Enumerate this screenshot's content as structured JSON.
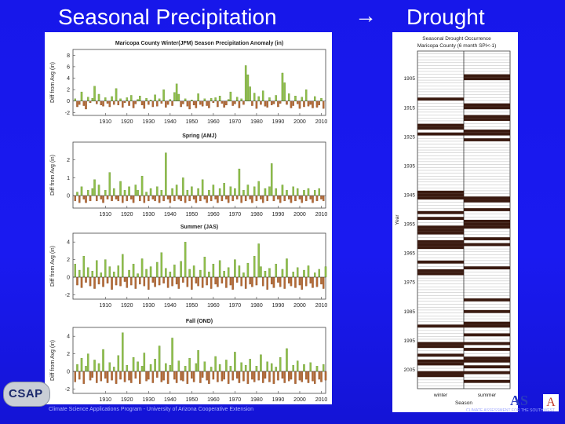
{
  "slide": {
    "title_left": "Seasonal Precipitation",
    "arrow": "→",
    "title_right": "Drought",
    "footer": "Climate Science Applications Program - University of Arizona Cooperative Extension",
    "logo_left": "CSAP",
    "logo_right": "AS",
    "logo_right_box": "A",
    "logo_right_sub": "CLIMATE ASSESSMENT FOR THE SOUTHWEST",
    "colors": {
      "background": "#1a1af0",
      "positive": "#8fbf4a",
      "negative": "#b56a35",
      "drought": "#3a1a10"
    }
  },
  "chart_data": [
    {
      "type": "bar",
      "title": "Maricopa County Winter(JFM) Season Precipitation Anomaly (in)",
      "ylabel": "Diff from Avg (in)",
      "ylim": [
        -2.5,
        9
      ],
      "yticks": [
        "8",
        "6",
        "4",
        "2",
        "0",
        "-2"
      ],
      "xlim": [
        1895,
        2012
      ],
      "xticks": [
        "1910",
        "1920",
        "1930",
        "1940",
        "1950",
        "1960",
        "1970",
        "1980",
        "1990",
        "2000",
        "2010"
      ],
      "start_year": 1896,
      "values": [
        0.4,
        -1.0,
        -0.6,
        1.6,
        -0.8,
        -1.4,
        0.7,
        -0.3,
        0.5,
        2.6,
        -0.5,
        1.2,
        -0.7,
        -0.9,
        0.6,
        -0.4,
        -1.0,
        0.8,
        -0.6,
        2.2,
        -0.7,
        0.4,
        -1.1,
        -0.3,
        0.6,
        -0.8,
        1.0,
        -1.2,
        -0.5,
        0.3,
        0.9,
        -0.7,
        -1.3,
        0.5,
        -0.6,
        0.2,
        -1.0,
        1.1,
        -0.9,
        0.4,
        -0.4,
        2.0,
        -1.1,
        -0.6,
        0.3,
        -0.8,
        1.5,
        3.0,
        1.2,
        -1.0,
        -0.5,
        0.4,
        -0.9,
        -1.4,
        0.2,
        -0.7,
        -1.2,
        1.3,
        -0.6,
        -0.9,
        0.4,
        -0.8,
        -1.2,
        0.5,
        -0.3,
        0.6,
        -1.0,
        0.9,
        -0.4,
        -1.1,
        -0.7,
        0.3,
        1.6,
        -0.8,
        -0.5,
        0.7,
        -1.2,
        0.4,
        -0.6,
        6.2,
        4.6,
        2.5,
        -0.8,
        1.4,
        -1.3,
        0.8,
        -0.6,
        1.8,
        -0.9,
        -1.1,
        0.6,
        -0.7,
        -0.5,
        1.0,
        -1.0,
        -0.4,
        4.9,
        3.2,
        -0.6,
        1.3,
        -1.2,
        -0.8,
        0.9,
        -0.5,
        -1.3,
        0.7,
        -1.0,
        2.0,
        -0.9,
        -0.6,
        -1.2,
        0.8,
        -1.1,
        -0.7,
        0.5,
        -1.3
      ]
    },
    {
      "type": "bar",
      "title": "Spring (AMJ)",
      "ylabel": "Diff from Avg (in)",
      "ylim": [
        -0.7,
        3
      ],
      "yticks": [
        "2",
        "1",
        "0"
      ],
      "xlim": [
        1895,
        2012
      ],
      "xticks": [
        "1910",
        "1920",
        "1930",
        "1940",
        "1950",
        "1960",
        "1970",
        "1980",
        "1990",
        "2000",
        "2010"
      ],
      "start_year": 1896,
      "values": [
        -0.3,
        0.2,
        -0.4,
        0.5,
        -0.2,
        -0.4,
        0.3,
        -0.3,
        0.4,
        0.9,
        -0.3,
        0.6,
        -0.2,
        -0.4,
        0.3,
        -0.2,
        1.3,
        -0.3,
        0.4,
        -0.2,
        -0.3,
        0.8,
        -0.4,
        0.3,
        -0.3,
        0.5,
        -0.2,
        -0.4,
        0.6,
        0.3,
        -0.3,
        1.1,
        -0.4,
        0.2,
        -0.3,
        0.4,
        -0.2,
        -0.3,
        0.5,
        -0.4,
        0.3,
        -0.3,
        2.4,
        -0.2,
        -0.4,
        0.4,
        -0.3,
        0.6,
        -0.2,
        -0.3,
        1.0,
        -0.4,
        0.3,
        -0.3,
        0.5,
        -0.2,
        -0.4,
        0.4,
        -0.3,
        0.9,
        -0.2,
        -0.4,
        0.3,
        -0.3,
        0.6,
        -0.2,
        -0.4,
        0.4,
        -0.3,
        0.7,
        -0.2,
        -0.4,
        0.5,
        -0.3,
        0.4,
        -0.2,
        1.5,
        -0.4,
        0.3,
        -0.3,
        0.6,
        -0.2,
        -0.4,
        0.5,
        -0.3,
        0.8,
        -0.2,
        -0.4,
        0.4,
        -0.3,
        0.5,
        1.8,
        -0.3,
        0.4,
        -0.2,
        -0.4,
        0.6,
        -0.3,
        0.3,
        -0.2,
        -0.4,
        0.5,
        -0.3,
        0.4,
        -0.2,
        -0.4,
        0.3,
        -0.3,
        0.4,
        -0.2,
        -0.4,
        0.3,
        -0.3,
        0.4,
        -0.2,
        -0.3
      ]
    },
    {
      "type": "bar",
      "title": "Summer (JAS)",
      "ylabel": "Diff from Avg (in)",
      "ylim": [
        -2.5,
        5
      ],
      "yticks": [
        "4",
        "2",
        "0",
        "-2"
      ],
      "xlim": [
        1895,
        2012
      ],
      "xticks": [
        "1910",
        "1920",
        "1930",
        "1940",
        "1950",
        "1960",
        "1970",
        "1980",
        "1990",
        "2000",
        "2010"
      ],
      "start_year": 1896,
      "values": [
        1.5,
        -0.9,
        0.8,
        -1.2,
        2.4,
        -0.6,
        1.1,
        -1.0,
        0.7,
        -1.3,
        1.9,
        -0.8,
        0.5,
        -1.1,
        2.0,
        -0.7,
        1.2,
        -1.4,
        0.6,
        -0.9,
        1.3,
        -1.0,
        2.6,
        -0.5,
        -1.2,
        0.8,
        -0.9,
        1.5,
        -1.3,
        0.4,
        -0.8,
        2.1,
        -1.0,
        0.9,
        -1.4,
        1.2,
        -0.6,
        -1.1,
        1.7,
        -0.9,
        2.8,
        -0.7,
        1.0,
        -1.2,
        0.6,
        -1.0,
        1.4,
        -0.8,
        -1.3,
        1.8,
        -0.6,
        4.0,
        -1.1,
        0.9,
        -1.4,
        1.3,
        -0.7,
        -1.0,
        0.8,
        -1.2,
        2.3,
        -0.9,
        0.6,
        -1.3,
        1.5,
        -0.8,
        -1.1,
        1.9,
        -0.7,
        0.7,
        -1.2,
        1.1,
        -0.9,
        -1.4,
        2.0,
        -0.6,
        1.3,
        -1.0,
        0.5,
        -1.3,
        1.6,
        -0.8,
        -1.1,
        2.4,
        -0.9,
        3.8,
        1.2,
        -1.0,
        0.7,
        -1.4,
        1.0,
        -0.8,
        -1.2,
        1.5,
        -0.6,
        -1.1,
        0.9,
        -1.3,
        2.1,
        -0.7,
        -1.0,
        0.6,
        -1.2,
        1.1,
        -0.9,
        -1.4,
        0.8,
        -1.0,
        1.3,
        -0.7,
        -1.2,
        0.5,
        -1.1,
        0.9,
        -0.8,
        -1.3,
        1.2
      ]
    },
    {
      "type": "bar",
      "title": "Fall (OND)",
      "ylabel": "Diff from Avg (in)",
      "ylim": [
        -2.5,
        5
      ],
      "yticks": [
        "4",
        "2",
        "0",
        "-2"
      ],
      "xlim": [
        1895,
        2012
      ],
      "xticks": [
        "1910",
        "1920",
        "1930",
        "1940",
        "1950",
        "1960",
        "1970",
        "1980",
        "1990",
        "2000",
        "2010"
      ],
      "start_year": 1896,
      "values": [
        -1.2,
        0.8,
        -0.9,
        1.5,
        -1.4,
        0.6,
        2.0,
        -1.0,
        -0.7,
        1.3,
        -1.3,
        0.9,
        -1.1,
        2.5,
        -0.8,
        -1.3,
        1.0,
        -1.0,
        0.5,
        -1.4,
        1.8,
        -0.9,
        4.4,
        -1.2,
        0.7,
        -1.0,
        -1.3,
        1.6,
        -0.8,
        1.1,
        -1.4,
        0.6,
        2.1,
        -1.1,
        -0.9,
        0.8,
        -1.3,
        1.4,
        -0.7,
        2.9,
        -1.2,
        -1.0,
        0.9,
        -1.4,
        0.7,
        3.8,
        -0.9,
        -1.3,
        1.2,
        -1.0,
        -1.1,
        0.6,
        -1.4,
        1.5,
        -0.8,
        -1.2,
        0.9,
        2.4,
        -1.3,
        -0.7,
        1.1,
        -1.0,
        -1.4,
        0.5,
        -0.9,
        1.7,
        -1.2,
        0.8,
        -1.1,
        -0.9,
        1.3,
        -1.4,
        0.6,
        -1.0,
        2.2,
        -0.8,
        -1.3,
        1.0,
        -1.1,
        0.7,
        -1.4,
        1.4,
        -0.9,
        -1.2,
        0.6,
        -1.0,
        1.9,
        -1.3,
        -0.8,
        1.1,
        -1.2,
        0.9,
        -1.4,
        0.5,
        -1.0,
        1.6,
        -0.8,
        -1.3,
        2.6,
        -1.1,
        -0.9,
        0.7,
        -1.4,
        1.2,
        -1.0,
        -1.2,
        0.8,
        -0.9,
        -1.3,
        1.0,
        -1.1,
        -1.4,
        0.6,
        -0.9,
        -1.2,
        0.8,
        -1.0
      ]
    },
    {
      "type": "heatmap",
      "title": "Seasonal Drought Occurrence",
      "subtitle": "Maricopa County (6 month SPI<-1)",
      "ylabel": "Year",
      "xlabel": "Season",
      "columns": [
        "winter",
        "summer"
      ],
      "yticks": [
        "1905",
        "1915",
        "1925",
        "1935",
        "1945",
        "1955",
        "1965",
        "1975",
        "1985",
        "1995",
        "2005"
      ],
      "years": [
        1896,
        2011
      ],
      "winter_drought_years": [
        1912,
        1921,
        1922,
        1924,
        1944,
        1945,
        1946,
        1951,
        1953,
        1956,
        1957,
        1958,
        1961,
        1962,
        1963,
        1968,
        1971,
        1972,
        1990,
        1996,
        1997,
        2000,
        2002,
        2003,
        2006,
        2007
      ],
      "summer_drought_years": [
        1904,
        1905,
        1914,
        1915,
        1918,
        1919,
        1923,
        1924,
        1926,
        1946,
        1947,
        1950,
        1954,
        1955,
        1956,
        1960,
        1962,
        1970,
        1981,
        1985,
        1989,
        1990,
        1993,
        1996,
        1998,
        2001,
        2002,
        2004,
        2006,
        2009
      ]
    }
  ]
}
